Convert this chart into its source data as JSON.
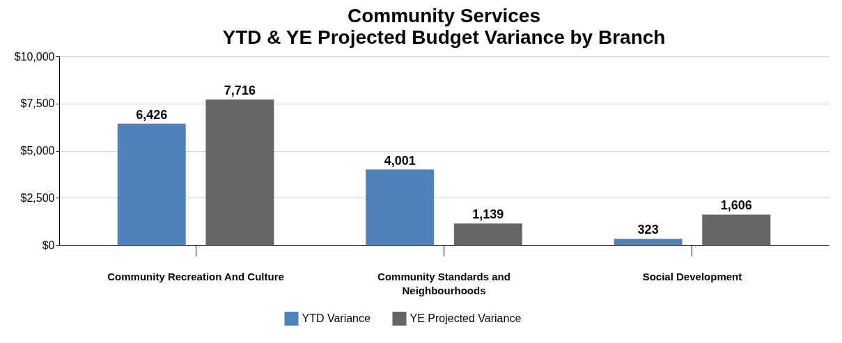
{
  "chart_data": {
    "type": "bar",
    "title": "Community Services",
    "subtitle": "YTD & YE Projected Budget Variance by Branch",
    "categories": [
      "Community Recreation And Culture",
      "Community Standards and Neighbourhoods",
      "Social Development"
    ],
    "series": [
      {
        "name": "YTD Variance",
        "color": "#4f81bd",
        "values": [
          6426,
          4001,
          323
        ],
        "value_labels": [
          "6,426",
          "4,001",
          "323"
        ]
      },
      {
        "name": "YE Projected Variance",
        "color": "#666666",
        "values": [
          7716,
          1139,
          1606
        ],
        "value_labels": [
          "7,716",
          "1,139",
          "1,606"
        ]
      }
    ],
    "ylim": [
      0,
      10000
    ],
    "yticks": [
      {
        "value": 0,
        "label": "$0"
      },
      {
        "value": 2500,
        "label": "$2,500"
      },
      {
        "value": 5000,
        "label": "$5,000"
      },
      {
        "value": 7500,
        "label": "$7,500"
      },
      {
        "value": 10000,
        "label": "$10,000"
      }
    ],
    "grid": "y",
    "legend": "bottom"
  }
}
